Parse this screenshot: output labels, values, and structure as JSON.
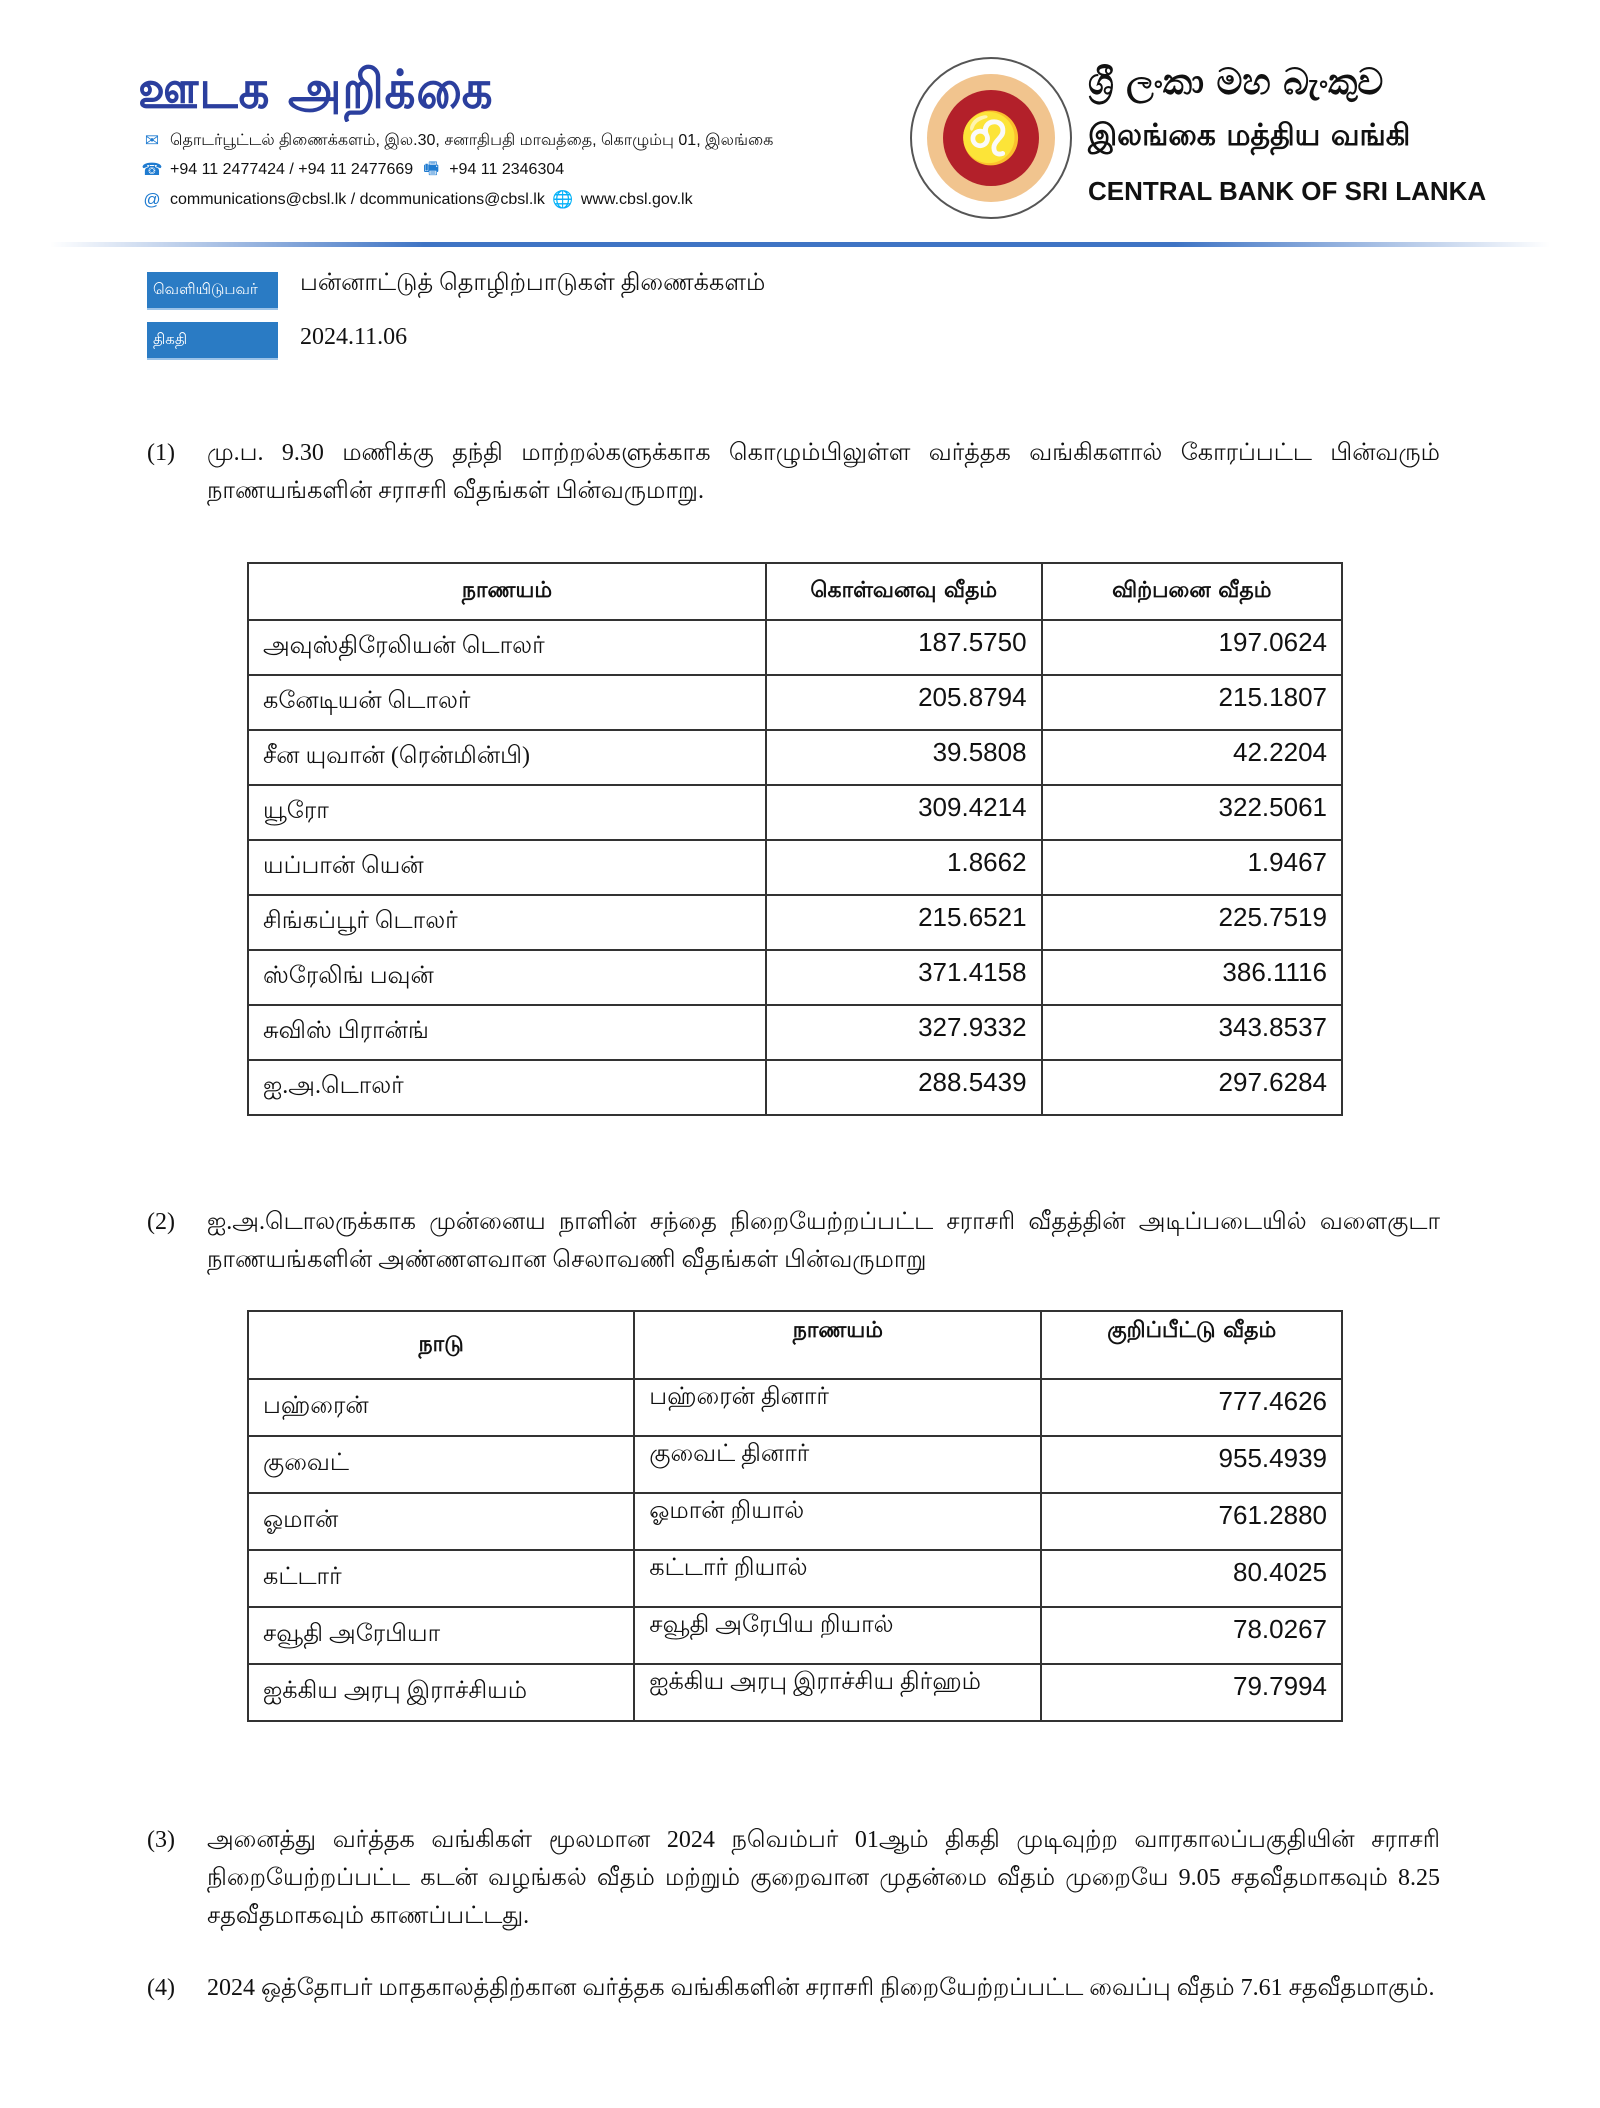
{
  "header": {
    "brand_title": "ஊடக அறிக்கை",
    "address": "தொடர்பூட்டல் திணைக்களம், இல.30, சனாதிபதி மாவத்தை, கொழும்பு 01, இலங்கை",
    "phones": "+94 11 2477424 / +94 11 2477669",
    "fax": "+94 11  2346304",
    "emails": "communications@cbsl.lk / dcommunications@cbsl.lk",
    "website": "www.cbsl.gov.lk",
    "bank_name_sinhala": "ශ්‍රී ලංකා මහ බැංකුව",
    "bank_name_tamil": "இலங்கை மத்திய வங்கி",
    "bank_name_english": "CENTRAL BANK OF SRI LANKA",
    "accent_color": "#2a7bc4",
    "brand_color": "#2b3f9e"
  },
  "meta": {
    "issuer_label": "வெளியிடுபவர்",
    "issuer_value": "பன்னாட்டுத் தொழிற்பாடுகள் திணைக்களம்",
    "date_label": "திகதி",
    "date_value": "2024.11.06"
  },
  "para1": {
    "num": "(1)",
    "text": "மு.ப. 9.30 மணிக்கு தந்தி மாற்றல்களுக்காக கொழும்பிலுள்ள வர்த்தக வங்கிகளால் கோரப்பட்ட பின்வரும் நாணயங்களின் சராசரி வீதங்கள் பின்வருமாறு."
  },
  "table1": {
    "headers": [
      "நாணயம்",
      "கொள்வனவு வீதம்",
      "விற்பனை வீதம்"
    ],
    "rows": [
      [
        "அவுஸ்திரேலியன் டொலர்",
        "187.5750",
        "197.0624"
      ],
      [
        "கனேடியன் டொலர்",
        "205.8794",
        "215.1807"
      ],
      [
        "சீன யுவான் (ரென்மின்பி)",
        "39.5808",
        "42.2204"
      ],
      [
        "யூரோ",
        "309.4214",
        "322.5061"
      ],
      [
        "யப்பான் யென்",
        "1.8662",
        "1.9467"
      ],
      [
        "சிங்கப்பூர் டொலர்",
        "215.6521",
        "225.7519"
      ],
      [
        "ஸ்ரேலிங் பவுன்",
        "371.4158",
        "386.1116"
      ],
      [
        "சுவிஸ் பிரான்ங்",
        "327.9332",
        "343.8537"
      ],
      [
        "ஐ.அ.டொலர்",
        "288.5439",
        "297.6284"
      ]
    ]
  },
  "para2": {
    "num": "(2)",
    "text": "ஐ.அ.டொலருக்காக முன்னைய நாளின் சந்தை நிறையேற்றப்பட்ட சராசரி வீதத்தின் அடிப்படையில் வளைகுடா நாணயங்களின் அண்ணளவான செலாவணி வீதங்கள் பின்வருமாறு"
  },
  "table2": {
    "headers": [
      "நாடு",
      "நாணயம்",
      "குறிப்பீட்டு வீதம்"
    ],
    "rows": [
      [
        "பஹ்ரைன்",
        "பஹ்ரைன் தினார்",
        "777.4626"
      ],
      [
        "குவைட்",
        "குவைட் தினார்",
        "955.4939"
      ],
      [
        "ஓமான்",
        "ஓமான் றியால்",
        "761.2880"
      ],
      [
        "கட்டார்",
        "கட்டார் றியால்",
        "80.4025"
      ],
      [
        "சவூதி அரேபியா",
        "சவூதி அரேபிய றியால்",
        "78.0267"
      ],
      [
        "ஐக்கிய அரபு இராச்சியம்",
        "ஐக்கிய அரபு இராச்சிய திர்ஹம்",
        "79.7994"
      ]
    ]
  },
  "para3": {
    "num": "(3)",
    "text": "அனைத்து வர்த்தக வங்கிகள் மூலமான 2024 நவெம்பர் 01ஆம் திகதி முடிவுற்ற வாரகாலப்பகுதியின் சராசரி நிறையேற்றப்பட்ட கடன் வழங்கல் வீதம் மற்றும் குறைவான முதன்மை வீதம் முறையே 9.05 சதவீதமாகவும் 8.25 சதவீதமாகவும் காணப்பட்டது."
  },
  "para4": {
    "num": "(4)",
    "text": "2024 ஒத்தோபர் மாதகாலத்திற்கான வர்த்தக வங்கிகளின் சராசரி நிறையேற்றப்பட்ட வைப்பு வீதம் 7.61 சதவீதமாகும்."
  }
}
